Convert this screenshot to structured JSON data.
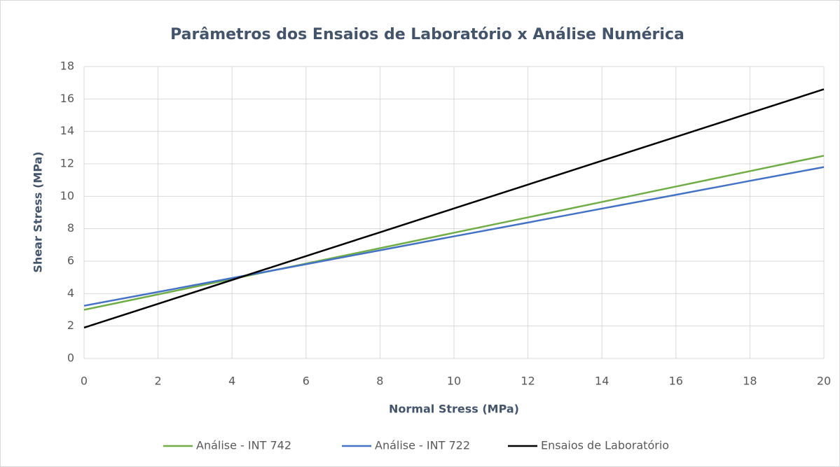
{
  "chart_data": {
    "type": "line",
    "title": "Parâmetros dos Ensaios de Laboratório x Análise Numérica",
    "xlabel": "Normal Stress (MPa)",
    "ylabel": "Shear Stress (MPa)",
    "x": [
      0,
      2,
      4,
      6,
      8,
      10,
      12,
      14,
      16,
      18,
      20
    ],
    "series": [
      {
        "name": "Análise - INT 742",
        "color": "#70ad47",
        "values": [
          3.0,
          3.95,
          4.9,
          5.85,
          6.8,
          7.75,
          8.7,
          9.65,
          10.6,
          11.55,
          12.5
        ]
      },
      {
        "name": "Análise - INT 722",
        "color": "#4472c4",
        "values": [
          3.25,
          4.1,
          4.96,
          5.81,
          6.67,
          7.53,
          8.38,
          9.24,
          10.09,
          10.95,
          11.8
        ]
      },
      {
        "name": "Ensaios de Laboratório",
        "color": "#000000",
        "values": [
          1.9,
          3.37,
          4.84,
          6.31,
          7.78,
          9.25,
          10.72,
          12.19,
          13.66,
          15.13,
          16.6
        ]
      }
    ],
    "xlim": [
      0,
      20
    ],
    "xticks": [
      0,
      2,
      4,
      6,
      8,
      10,
      12,
      14,
      16,
      18,
      20
    ],
    "ylim": [
      0,
      18
    ],
    "yticks": [
      0,
      2,
      4,
      6,
      8,
      10,
      12,
      14,
      16,
      18
    ],
    "grid": true,
    "legend": "bottom"
  }
}
